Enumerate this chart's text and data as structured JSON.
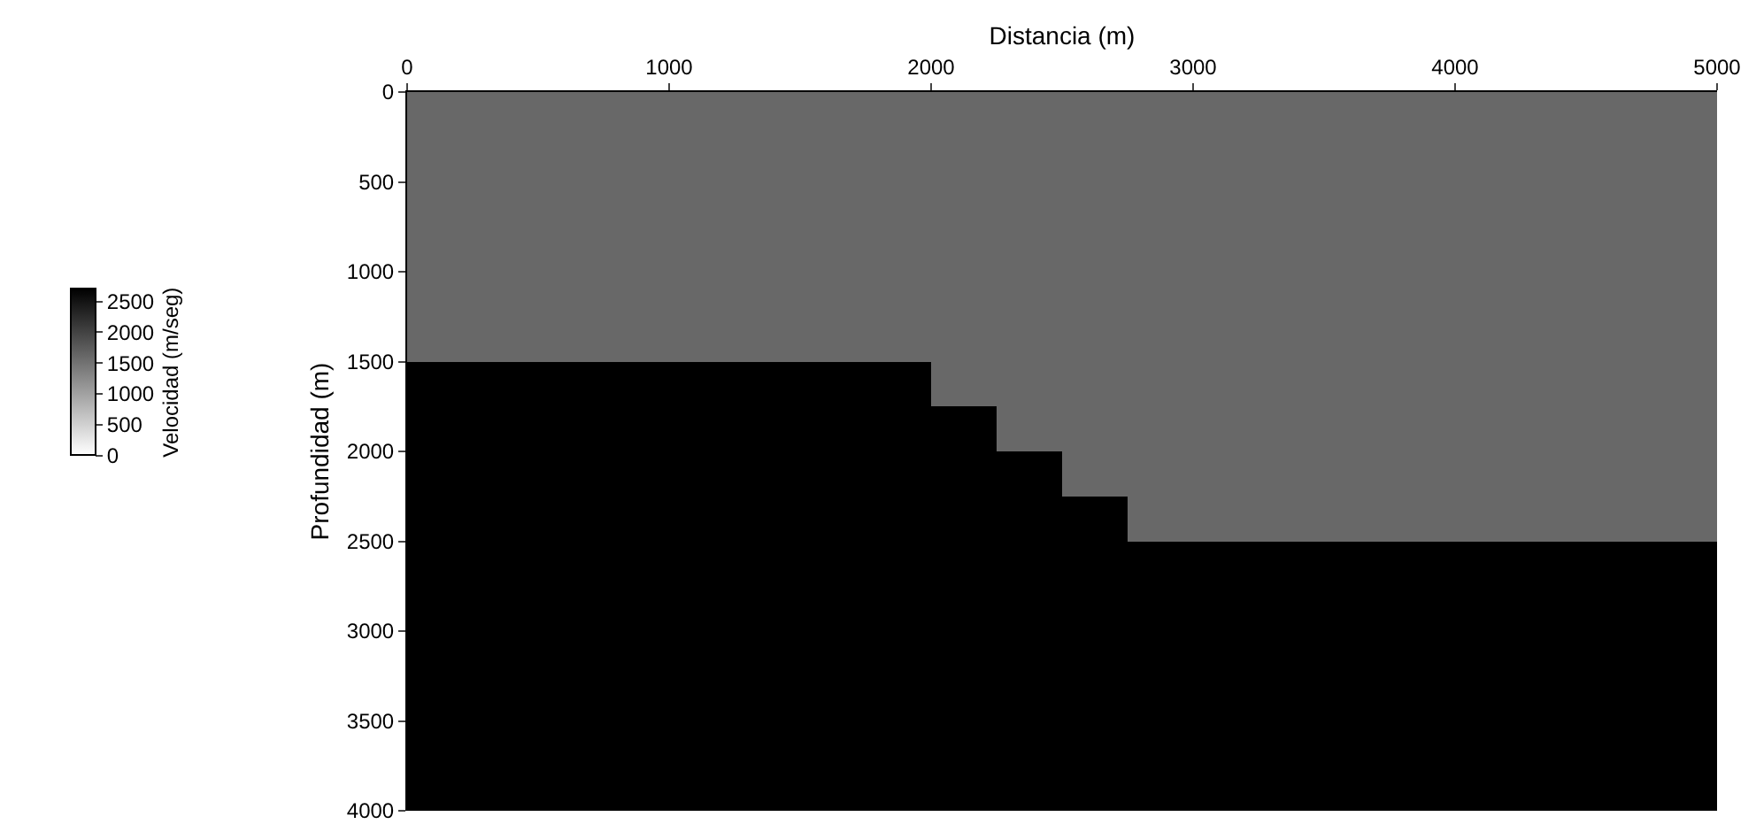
{
  "chart_data": {
    "type": "heatmap",
    "xlabel": "Distancia (m)",
    "ylabel": "Profundidad (m)",
    "clabel": "Velocidad (m/seg)",
    "x": [
      125,
      375,
      625,
      875,
      1125,
      1375,
      1625,
      1875,
      2125,
      2375,
      2625,
      2875,
      3125,
      3375,
      3625,
      3875,
      4125,
      4375,
      4625,
      4875
    ],
    "y": [
      125,
      375,
      625,
      875,
      1125,
      1375,
      1625,
      1875,
      2125,
      2375,
      2625,
      2875,
      3125,
      3375,
      3625,
      3875
    ],
    "cells": [
      [
        1600,
        1600,
        1600,
        1600,
        1600,
        1600,
        1600,
        1600,
        1600,
        1600,
        1600,
        1600,
        1600,
        1600,
        1600,
        1600,
        1600,
        1600,
        1600,
        1600
      ],
      [
        1600,
        1600,
        1600,
        1600,
        1600,
        1600,
        1600,
        1600,
        1600,
        1600,
        1600,
        1600,
        1600,
        1600,
        1600,
        1600,
        1600,
        1600,
        1600,
        1600
      ],
      [
        1600,
        1600,
        1600,
        1600,
        1600,
        1600,
        1600,
        1600,
        1600,
        1600,
        1600,
        1600,
        1600,
        1600,
        1600,
        1600,
        1600,
        1600,
        1600,
        1600
      ],
      [
        1600,
        1600,
        1600,
        1600,
        1600,
        1600,
        1600,
        1600,
        1600,
        1600,
        1600,
        1600,
        1600,
        1600,
        1600,
        1600,
        1600,
        1600,
        1600,
        1600
      ],
      [
        1600,
        1600,
        1600,
        1600,
        1600,
        1600,
        1600,
        1600,
        1600,
        1600,
        1600,
        1600,
        1600,
        1600,
        1600,
        1600,
        1600,
        1600,
        1600,
        1600
      ],
      [
        1600,
        1600,
        1600,
        1600,
        1600,
        1600,
        1600,
        1600,
        1600,
        1600,
        1600,
        1600,
        1600,
        1600,
        1600,
        1600,
        1600,
        1600,
        1600,
        1600
      ],
      [
        2700,
        2700,
        2700,
        2700,
        2700,
        2700,
        2700,
        2700,
        1600,
        1600,
        1600,
        1600,
        1600,
        1600,
        1600,
        1600,
        1600,
        1600,
        1600,
        1600
      ],
      [
        2700,
        2700,
        2700,
        2700,
        2700,
        2700,
        2700,
        2700,
        2700,
        1600,
        1600,
        1600,
        1600,
        1600,
        1600,
        1600,
        1600,
        1600,
        1600,
        1600
      ],
      [
        2700,
        2700,
        2700,
        2700,
        2700,
        2700,
        2700,
        2700,
        2700,
        2700,
        1600,
        1600,
        1600,
        1600,
        1600,
        1600,
        1600,
        1600,
        1600,
        1600
      ],
      [
        2700,
        2700,
        2700,
        2700,
        2700,
        2700,
        2700,
        2700,
        2700,
        2700,
        2700,
        1600,
        1600,
        1600,
        1600,
        1600,
        1600,
        1600,
        1600,
        1600
      ],
      [
        2700,
        2700,
        2700,
        2700,
        2700,
        2700,
        2700,
        2700,
        2700,
        2700,
        2700,
        2700,
        2700,
        2700,
        2700,
        2700,
        2700,
        2700,
        2700,
        2700
      ],
      [
        2700,
        2700,
        2700,
        2700,
        2700,
        2700,
        2700,
        2700,
        2700,
        2700,
        2700,
        2700,
        2700,
        2700,
        2700,
        2700,
        2700,
        2700,
        2700,
        2700
      ],
      [
        2700,
        2700,
        2700,
        2700,
        2700,
        2700,
        2700,
        2700,
        2700,
        2700,
        2700,
        2700,
        2700,
        2700,
        2700,
        2700,
        2700,
        2700,
        2700,
        2700
      ],
      [
        2700,
        2700,
        2700,
        2700,
        2700,
        2700,
        2700,
        2700,
        2700,
        2700,
        2700,
        2700,
        2700,
        2700,
        2700,
        2700,
        2700,
        2700,
        2700,
        2700
      ],
      [
        2700,
        2700,
        2700,
        2700,
        2700,
        2700,
        2700,
        2700,
        2700,
        2700,
        2700,
        2700,
        2700,
        2700,
        2700,
        2700,
        2700,
        2700,
        2700,
        2700
      ],
      [
        2700,
        2700,
        2700,
        2700,
        2700,
        2700,
        2700,
        2700,
        2700,
        2700,
        2700,
        2700,
        2700,
        2700,
        2700,
        2700,
        2700,
        2700,
        2700,
        2700
      ]
    ],
    "clim": [
      0,
      2700
    ],
    "cticks": [
      0,
      500,
      1000,
      1500,
      2000,
      2500
    ],
    "xlim": [
      0,
      5000
    ],
    "xticks": [
      0,
      1000,
      2000,
      3000,
      4000,
      5000
    ],
    "ylim": [
      4000,
      0
    ],
    "yticks": [
      0,
      500,
      1000,
      1500,
      2000,
      2500,
      3000,
      3500,
      4000
    ]
  }
}
